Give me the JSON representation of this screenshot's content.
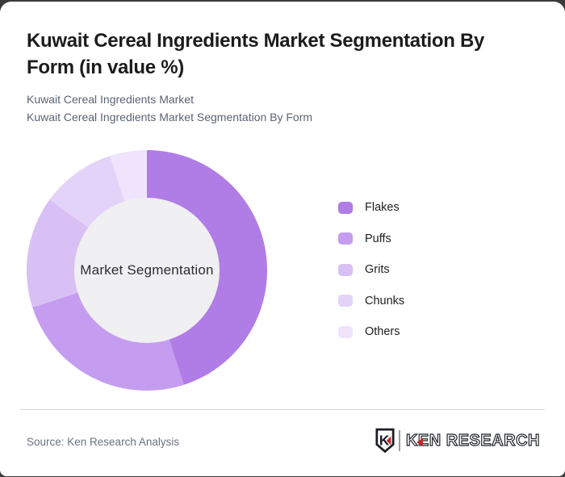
{
  "page": {
    "title_line1": "Kuwait Cereal Ingredients Market Segmentation By",
    "title_line2": "Form (in value %)",
    "subtitle_line1": "Kuwait Cereal Ingredients Market",
    "subtitle_line2": "Kuwait Cereal Ingredients Market Segmentation By Form"
  },
  "chart_data": {
    "type": "pie",
    "variant": "donut",
    "title": "Kuwait Cereal Ingredients Market Segmentation By Form (in value %)",
    "unit": "value %",
    "center_label": "Market Segmentation",
    "categories": [
      "Flakes",
      "Puffs",
      "Grits",
      "Chunks",
      "Others"
    ],
    "values": [
      45,
      25,
      15,
      10,
      5
    ],
    "colors": [
      "#b07ce6",
      "#c49df0",
      "#d9c0f4",
      "#e4d3f8",
      "#efe4fb"
    ],
    "start_angle_deg": 0,
    "direction": "clockwise",
    "legend_position": "right",
    "hole_color": "#f0eff1"
  },
  "footer": {
    "source": "Source: Ken Research Analysis",
    "logo_shield_letter": "K",
    "logo_text": "KEN RESEARCH"
  },
  "theme": {
    "card_background": "#ffffff",
    "page_background": "#3b3b3b",
    "logo_red": "#c2272d",
    "divider": "#d5d5d5",
    "title_color": "#1c1c1e",
    "subtitle_color": "#5b6473"
  }
}
